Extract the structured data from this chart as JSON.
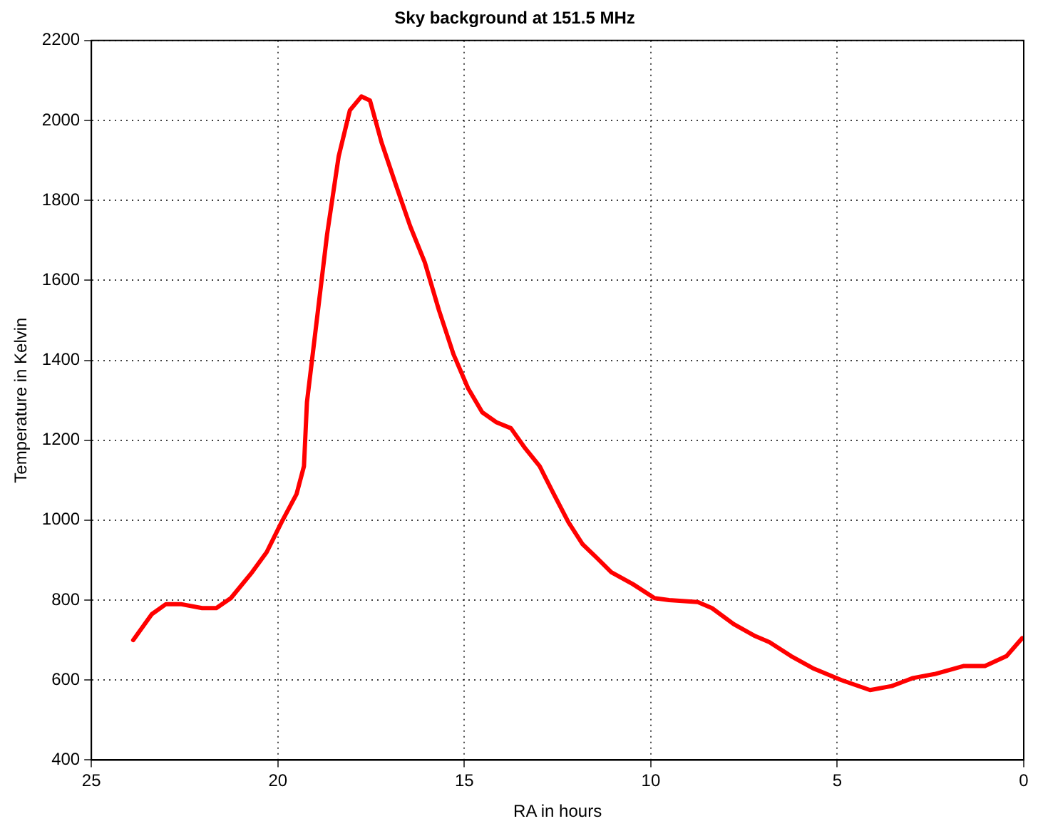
{
  "chart_data": {
    "type": "line",
    "title": "Sky background at 151.5 MHz",
    "xlabel": "RA in hours",
    "ylabel": "Temperature in Kelvin",
    "x": [
      23.88,
      23.38,
      23.0,
      22.6,
      22.03,
      21.65,
      21.26,
      20.69,
      20.3,
      19.9,
      19.5,
      19.3,
      19.22,
      18.95,
      18.68,
      18.37,
      18.07,
      17.76,
      17.53,
      17.22,
      16.84,
      16.45,
      16.06,
      15.68,
      15.29,
      14.9,
      14.52,
      14.14,
      13.75,
      13.37,
      12.98,
      12.6,
      12.21,
      11.83,
      11.44,
      11.06,
      10.48,
      9.9,
      9.51,
      8.74,
      8.36,
      7.78,
      7.2,
      6.82,
      6.24,
      5.66,
      4.89,
      4.12,
      3.54,
      2.97,
      2.39,
      1.62,
      1.04,
      0.46,
      0.04
    ],
    "series": [
      {
        "color": "#ff0000",
        "values": [
          700,
          765,
          790,
          790,
          780,
          780,
          805,
          870,
          920,
          995,
          1065,
          1135,
          1295,
          1505,
          1715,
          1910,
          2025,
          2060,
          2050,
          1945,
          1840,
          1735,
          1645,
          1525,
          1415,
          1330,
          1270,
          1245,
          1230,
          1180,
          1135,
          1065,
          995,
          940,
          905,
          870,
          840,
          805,
          800,
          795,
          780,
          740,
          710,
          695,
          660,
          630,
          600,
          575,
          585,
          605,
          615,
          635,
          635,
          660,
          705
        ]
      }
    ],
    "xlim": [
      25,
      0
    ],
    "xticks": [
      0,
      5,
      10,
      15,
      20,
      25
    ],
    "ylim": [
      400,
      2200
    ],
    "yticks": [
      400,
      600,
      800,
      1000,
      1200,
      1400,
      1600,
      1800,
      2000,
      2200
    ],
    "grid": true,
    "line_style": "solid",
    "marker": "none"
  }
}
